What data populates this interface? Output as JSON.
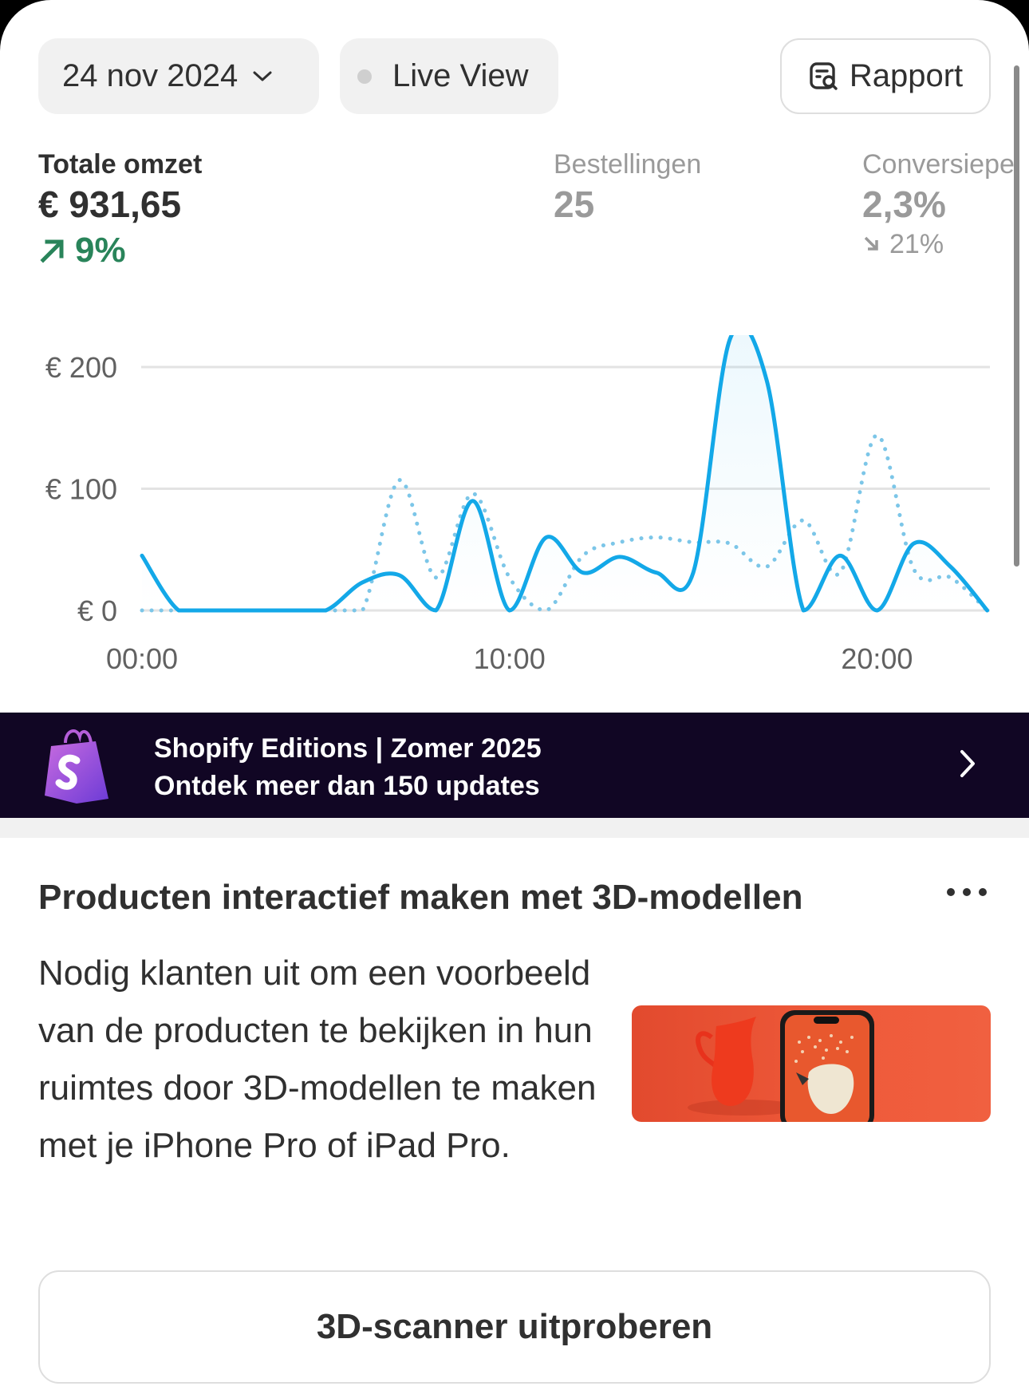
{
  "toolbar": {
    "date_label": "24 nov 2024",
    "live_view_label": "Live View",
    "report_label": "Rapport"
  },
  "metrics": [
    {
      "label": "Totale omzet",
      "value": "€ 931,65",
      "delta": "9%",
      "trend": "up",
      "color": "#29845a"
    },
    {
      "label": "Bestellingen",
      "value": "25"
    },
    {
      "label": "Conversiepe",
      "value": "2,3%",
      "delta": "21%",
      "trend": "down"
    }
  ],
  "chart_data": {
    "type": "line",
    "x": [
      0,
      1,
      2,
      3,
      4,
      5,
      6,
      7,
      8,
      9,
      10,
      11,
      12,
      13,
      14,
      15,
      16,
      17,
      18,
      19,
      20,
      21,
      22,
      23
    ],
    "xtick_labels": [
      "00:00",
      "10:00",
      "20:00"
    ],
    "xticks": [
      0,
      10,
      20
    ],
    "ytick_labels": [
      "€ 0",
      "€ 100",
      "€ 200"
    ],
    "yticks": [
      0,
      100,
      200
    ],
    "ylim": [
      0,
      230
    ],
    "grid": true,
    "series": [
      {
        "style": "solid",
        "color": "#13a8e8",
        "fill": true,
        "values": [
          45,
          0,
          0,
          0,
          0,
          0,
          23,
          29,
          0,
          90,
          0,
          60,
          31,
          44,
          31,
          31,
          223,
          189,
          0,
          45,
          0,
          55,
          36,
          0
        ]
      },
      {
        "style": "dotted",
        "color": "#7cc6e8",
        "values": [
          0,
          0,
          0,
          0,
          0,
          0,
          0,
          107,
          27,
          96,
          27,
          0,
          45,
          56,
          60,
          56,
          55,
          36,
          74,
          31,
          144,
          34,
          27,
          0
        ]
      }
    ]
  },
  "banner": {
    "title": "Shopify Editions | Zomer 2025",
    "subtitle": "Ontdek meer dan 150 updates",
    "background": "#110624"
  },
  "card": {
    "title": "Producten interactief maken met 3D-modellen",
    "body": "Nodig klanten uit om een voorbeeld van de producten te bekijken in hun ruimtes door 3D-modellen te maken met je iPhone Pro of iPad Pro.",
    "cta_label": "3D-scanner uitproberen"
  }
}
